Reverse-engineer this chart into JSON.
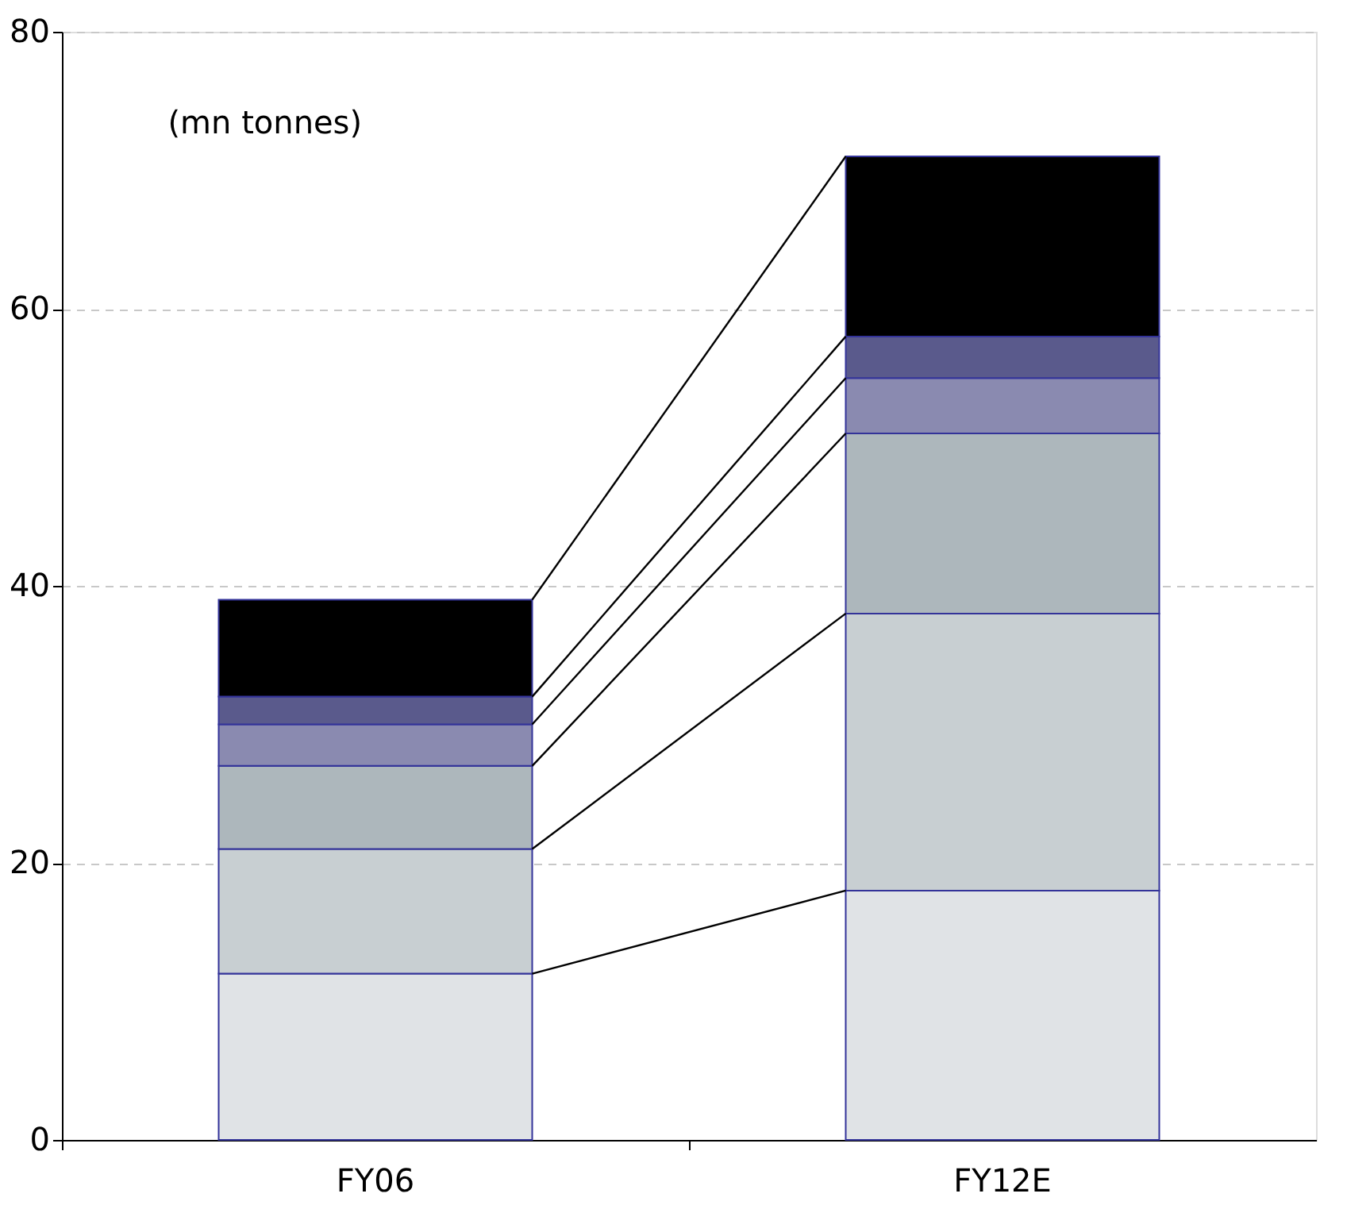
{
  "chart_data": {
    "type": "bar",
    "stacked": true,
    "categories": [
      "FY06",
      "FY12E"
    ],
    "series": [
      {
        "color": "#e0e3e6",
        "values": [
          12,
          18
        ]
      },
      {
        "color": "#c8cfd2",
        "values": [
          9,
          20
        ]
      },
      {
        "color": "#adb7bc",
        "values": [
          6,
          13
        ]
      },
      {
        "color": "#8a8ab0",
        "values": [
          3,
          4
        ]
      },
      {
        "color": "#5a5a8c",
        "values": [
          2,
          3
        ]
      },
      {
        "color": "#000000",
        "values": [
          7,
          13
        ]
      }
    ],
    "ylim": [
      0,
      80
    ],
    "yticks": [
      0,
      20,
      40,
      60,
      80
    ],
    "grid": "y",
    "legend": false,
    "annotations": [
      "(mn tonnes)"
    ]
  }
}
